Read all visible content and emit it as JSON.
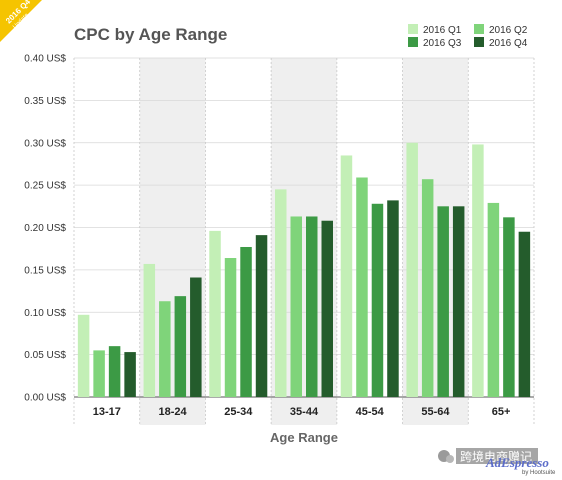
{
  "badge": {
    "year_label": "2016 Q4",
    "sub_label": "Update",
    "color": "#f5c400"
  },
  "watermark": {
    "chinese_text": "跨境电商赠记",
    "logo_text": "AdEspresso",
    "by_text": "by Hootsuite"
  },
  "chart_data": {
    "type": "bar",
    "title": "CPC by Age Range",
    "xlabel": "Age Range",
    "ylabel": "",
    "ylim": [
      0,
      0.4
    ],
    "yticks": [
      "0.00 US$",
      "0.05 US$",
      "0.10 US$",
      "0.15 US$",
      "0.20 US$",
      "0.25 US$",
      "0.30 US$",
      "0.35 US$",
      "0.40 US$"
    ],
    "categories": [
      "13-17",
      "18-24",
      "25-34",
      "35-44",
      "45-54",
      "55-64",
      "65+"
    ],
    "shaded_categories": [
      1,
      3,
      5
    ],
    "legend_position": "top-right",
    "series": [
      {
        "name": "2016 Q1",
        "color": "#c3efb6",
        "values": [
          0.097,
          0.157,
          0.196,
          0.245,
          0.285,
          0.3,
          0.298
        ]
      },
      {
        "name": "2016 Q2",
        "color": "#7fd47a",
        "values": [
          0.055,
          0.113,
          0.164,
          0.213,
          0.259,
          0.257,
          0.229
        ]
      },
      {
        "name": "2016 Q3",
        "color": "#3c9a45",
        "values": [
          0.06,
          0.119,
          0.177,
          0.213,
          0.228,
          0.225,
          0.212
        ]
      },
      {
        "name": "2016 Q4",
        "color": "#245c2c",
        "values": [
          0.053,
          0.141,
          0.191,
          0.208,
          0.232,
          0.225,
          0.195
        ]
      }
    ]
  }
}
